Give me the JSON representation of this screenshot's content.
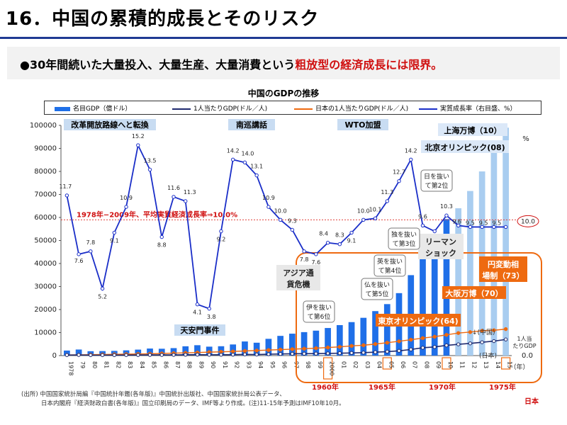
{
  "page": {
    "title": "16．中国の累積的成長とそのリスク",
    "subtitle_plain": "●30年間続いた大量投入、大量生産、大量消費という",
    "subtitle_emph": "粗放型の経済成長には限界。",
    "source_line1": "(出所) 中国国家統計局編『中国統計年鑑(各年版)』中国統計出版社、中国国家統計局公表データ、",
    "source_line2": "日本内閣府『経済財政白書(各年版)』国立印刷局のデータ、IMF等より作成。(注)11-15年予測はIMF10年10月。"
  },
  "legend": {
    "gdp": "名目GDP（億ドル）",
    "cn_pc": "1人当たりGDP(ドル／人)",
    "jp_pc": "日本の1人当たりGDP(ドル／人)",
    "growth": "実質成長率（右目盛、%）"
  },
  "colors": {
    "gdp_bar": "#1f6fe8",
    "gdp_forecast": "#a9cdf0",
    "growth_line": "#1a2ec8",
    "cn_line": "#1f2a6f",
    "jp_line": "#ee6a10",
    "annot_bg": "#1f6fe8",
    "japan_box": "#ee6a10",
    "event_bg": "#c8dcf2"
  },
  "chart_data": {
    "type": "bar+line",
    "title": "中国のGDPの推移",
    "categories": [
      "1978",
      "79",
      "80",
      "81",
      "82",
      "83",
      "84",
      "85",
      "86",
      "87",
      "88",
      "89",
      "90",
      "91",
      "92",
      "93",
      "94",
      "95",
      "96",
      "97",
      "98",
      "99",
      "2000",
      "01",
      "02",
      "03",
      "04",
      "05",
      "06",
      "07",
      "08",
      "09",
      "10",
      "11",
      "12",
      "13",
      "14",
      "15"
    ],
    "y_left": {
      "range": [
        0,
        100000
      ],
      "ticks": [
        "0",
        "10000",
        "20000",
        "30000",
        "40000",
        "50000",
        "60000",
        "70000",
        "80000",
        "90000",
        "100000"
      ]
    },
    "y_right": {
      "unit": "%",
      "ticks": [
        "0.0",
        "10.0"
      ]
    },
    "series": [
      {
        "name": "名目GDP（億ドル）",
        "type": "bar",
        "values": [
          2180,
          2630,
          1900,
          1950,
          2040,
          2270,
          2590,
          3060,
          2970,
          3240,
          4040,
          4510,
          3880,
          4060,
          4830,
          6130,
          5590,
          7280,
          8560,
          9520,
          10190,
          10830,
          11980,
          13240,
          14540,
          16410,
          19320,
          22360,
          27130,
          34940,
          45200,
          49910,
          59300,
          64000,
          71500,
          80000,
          89000,
          99000
        ],
        "forecast_from_index": 33
      },
      {
        "name": "1人当たりGDP(ドル／人)",
        "type": "line",
        "values": [
          227,
          270,
          195,
          196,
          203,
          223,
          251,
          294,
          281,
          302,
          370,
          407,
          344,
          353,
          413,
          516,
          464,
          601,
          701,
          774,
          822,
          860,
          946,
          1039,
          1135,
          1274,
          1490,
          1715,
          2070,
          2652,
          3414,
          3749,
          4430,
          4900,
          5300,
          5800,
          6300,
          7000
        ]
      },
      {
        "name": "日本の1人当たりGDP(ドル／人)",
        "type": "line",
        "x_labels": [
          "1960年",
          "1965年",
          "1970年",
          "1975年"
        ],
        "values": [
          300,
          340,
          400,
          480,
          560,
          640,
          720,
          800,
          920,
          1050,
          1200,
          1320,
          1500,
          1650,
          1800,
          2000,
          2200,
          2400,
          2600,
          2800,
          3000,
          3200,
          3500,
          3800,
          4200,
          4500,
          5000,
          5600,
          6200,
          6900,
          7600,
          8200,
          9000,
          9800,
          10200,
          10800,
          11000,
          11500
        ]
      },
      {
        "name": "実質成長率（右目盛、%）",
        "type": "line",
        "values": [
          11.7,
          7.6,
          7.8,
          5.2,
          9.1,
          10.9,
          15.2,
          13.5,
          8.8,
          11.6,
          11.3,
          4.1,
          3.8,
          9.2,
          14.2,
          14.0,
          13.1,
          10.9,
          10.0,
          9.3,
          7.8,
          7.6,
          8.4,
          8.3,
          9.1,
          10.0,
          10.1,
          11.3,
          12.7,
          14.2,
          9.6,
          9.2,
          10.3,
          9.6,
          9.5,
          9.5,
          9.5,
          9.5
        ]
      }
    ],
    "reference_line": {
      "label": "1978年−2009年、平均実質経済成長率⇒10.0%",
      "value_label": "10.0"
    },
    "annotations": {
      "events": [
        "改革開放路線へと転換",
        "南巡講話",
        "WTO加盟",
        "天安門事件",
        "上海万博（10）",
        "北京オリンピック(08)"
      ],
      "crises": [
        "アジア通貨危機",
        "リーマンショック"
      ],
      "overtakes": [
        "伊を抜いて第6位",
        "仏を抜いて第5位",
        "英を抜いて第4位",
        "独を抜いて第3位",
        "日を抜いて第2位"
      ],
      "japan_events": [
        "東京オリンピック(64)",
        "大阪万博（70）",
        "円変動相場制（73）"
      ],
      "japan_box_label": "日本",
      "china_label": "↓(中国)",
      "japan_label": "(日本)",
      "right_label": "1人当たりGDP",
      "year_label": "（年）",
      "boxed_categories": [
        "2000",
        "05",
        "10",
        "15"
      ]
    }
  }
}
